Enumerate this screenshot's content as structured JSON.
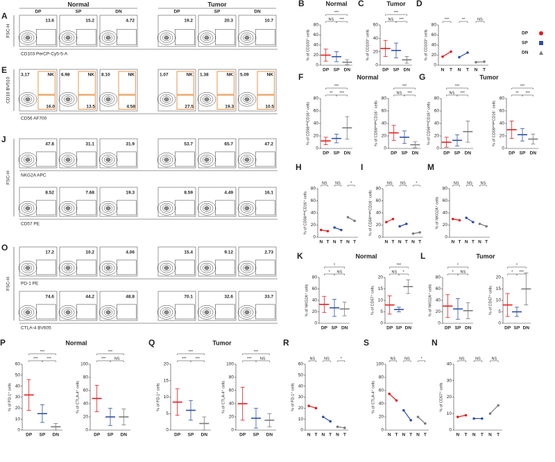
{
  "flow": {
    "headers": [
      "Normal",
      "Tumor"
    ],
    "subgroups": [
      "DP",
      "SP",
      "DN"
    ],
    "groups": [
      {
        "panel": "A",
        "ylabel": "FSC-H",
        "rows": [
          {
            "xlabel": "CD103  PerCP-Cy5-5-A",
            "gates": [
              "13.6",
              "15.2",
              "4.72",
              "19.2",
              "20.3",
              "10.7"
            ]
          }
        ]
      },
      {
        "panel": "E",
        "ylabel": "CD16  BV510",
        "rows": [
          {
            "xlabel": "CD56  AF700",
            "gate_label": "NK",
            "gates": [
              [
                "3.17",
                "16.0"
              ],
              [
                "6.98",
                "13.5"
              ],
              [
                "8.10",
                "4.58"
              ],
              [
                "1.07",
                "27.5"
              ],
              [
                "1.38",
                "19.3"
              ],
              [
                "5.09",
                "10.5"
              ]
            ]
          }
        ]
      },
      {
        "panel": "J",
        "ylabel": "FSC-H",
        "rows": [
          {
            "xlabel": "NKG2A  APC",
            "gates": [
              "47.8",
              "31.1",
              "31.9",
              "53.7",
              "65.7",
              "47.2"
            ]
          },
          {
            "xlabel": "CD57  PE",
            "gates": [
              "8.52",
              "7.68",
              "19.3",
              "8.59",
              "4.49",
              "16.1"
            ]
          }
        ]
      },
      {
        "panel": "O",
        "ylabel": "FSC-H",
        "rows": [
          {
            "xlabel": "PD-1  PE",
            "gates": [
              "17.2",
              "10.2",
              "4.06",
              "15.4",
              "9.12",
              "2.73"
            ]
          },
          {
            "xlabel": "CTLA-4  BV605",
            "gates": [
              "74.6",
              "44.2",
              "48.8",
              "70.1",
              "32.6",
              "33.7"
            ]
          }
        ]
      }
    ]
  },
  "legend": [
    {
      "name": "DP",
      "color": "#e41a1c",
      "marker": "circle"
    },
    {
      "name": "SP",
      "color": "#2b4ea6",
      "marker": "square"
    },
    {
      "name": "DN",
      "color": "#7a7a7a",
      "marker": "triangle"
    }
  ],
  "chart_data": [
    {
      "type": "dotplot",
      "panel": "B",
      "title": "Normal",
      "ylabel": "% of CD103⁺ cells",
      "categories": [
        "DP",
        "SP",
        "DN"
      ],
      "values": [
        20,
        17,
        6
      ],
      "errors": [
        12,
        10,
        5
      ],
      "ylim": [
        0,
        80
      ],
      "yticks": [
        0,
        20,
        40,
        60,
        80
      ],
      "significance": [
        "NS",
        "***",
        "***"
      ]
    },
    {
      "type": "dotplot",
      "panel": "C",
      "title": "Tumor",
      "ylabel": "% of CD103⁺ cells",
      "categories": [
        "DP",
        "SP",
        "DN"
      ],
      "values": [
        25,
        22,
        8
      ],
      "errors": [
        12,
        11,
        5
      ],
      "ylim": [
        0,
        60
      ],
      "yticks": [
        0,
        20,
        40,
        60
      ],
      "significance": [
        "NS",
        "***",
        "***"
      ]
    },
    {
      "type": "paired",
      "panel": "D",
      "ylabel": "% of CD103⁺ cells",
      "categories": [
        "N",
        "T",
        "N",
        "T",
        "N",
        "T"
      ],
      "values": [
        17,
        27,
        16,
        25,
        6,
        7
      ],
      "ylim": [
        0,
        80
      ],
      "yticks": [
        0,
        20,
        40,
        60,
        80
      ],
      "significance": [
        "***",
        "**",
        "NS"
      ]
    },
    {
      "type": "dotplot",
      "panel": "F",
      "title": "Normal",
      "ylabel": "% of CD56ᵈⁱᵐCD16⁺ cells",
      "categories": [
        "DP",
        "SP",
        "DN"
      ],
      "values": [
        12,
        16,
        33
      ],
      "errors": [
        6,
        7,
        18
      ],
      "ylim": [
        0,
        80
      ],
      "yticks": [
        0,
        20,
        40,
        60,
        80
      ],
      "significance": [
        "**",
        "***",
        "***"
      ]
    },
    {
      "type": "dotplot",
      "ylabel": "% of CD56ᵇʳⁱᵍʰᵗCD16⁻ cells",
      "categories": [
        "DP",
        "SP",
        "DN"
      ],
      "values": [
        25,
        18,
        6
      ],
      "errors": [
        12,
        10,
        5
      ],
      "ylim": [
        0,
        80
      ],
      "yticks": [
        0,
        20,
        40,
        60,
        80
      ],
      "significance": [
        "NS",
        "***",
        "***"
      ]
    },
    {
      "type": "dotplot",
      "panel": "G",
      "title": "Tumor",
      "ylabel": "% of CD56ᵈⁱᵐCD16⁺ cells",
      "categories": [
        "DP",
        "SP",
        "DN"
      ],
      "values": [
        10,
        13,
        27
      ],
      "errors": [
        8,
        9,
        17
      ],
      "ylim": [
        0,
        80
      ],
      "yticks": [
        0,
        20,
        40,
        60,
        80
      ],
      "significance": [
        "NS",
        "***",
        "***"
      ]
    },
    {
      "type": "dotplot",
      "ylabel": "% of CD56ᵇʳⁱᵍʰᵗCD16⁻ cells",
      "categories": [
        "DP",
        "SP",
        "DN"
      ],
      "values": [
        30,
        22,
        15
      ],
      "errors": [
        14,
        10,
        8
      ],
      "ylim": [
        0,
        80
      ],
      "yticks": [
        0,
        20,
        40,
        60,
        80
      ],
      "significance": [
        "**",
        "***",
        "***"
      ]
    },
    {
      "type": "paired",
      "panel": "H",
      "ylabel": "% of CD56ᵈⁱᵐCD16⁺ cells",
      "categories": [
        "N",
        "T",
        "N",
        "T",
        "N",
        "T"
      ],
      "values": [
        12,
        10,
        16,
        12,
        33,
        27
      ],
      "ylim": [
        0,
        80
      ],
      "yticks": [
        0,
        20,
        40,
        60,
        80
      ],
      "significance": [
        "NS",
        "NS",
        "*"
      ]
    },
    {
      "type": "paired",
      "panel": "I",
      "ylabel": "% of CD56ᵇʳⁱᵍʰᵗCD16⁻ cells",
      "categories": [
        "N",
        "T",
        "N",
        "T",
        "N",
        "T"
      ],
      "values": [
        25,
        30,
        18,
        22,
        6,
        8
      ],
      "ylim": [
        0,
        80
      ],
      "yticks": [
        0,
        20,
        40,
        60,
        80
      ],
      "significance": [
        "NS",
        "NS",
        "*"
      ]
    },
    {
      "type": "paired",
      "panel": "M",
      "ylabel": "% of NKG2A⁺ cells",
      "categories": [
        "N",
        "T",
        "N",
        "T",
        "N",
        "T"
      ],
      "values": [
        30,
        28,
        32,
        25,
        22,
        18
      ],
      "ylim": [
        0,
        80
      ],
      "yticks": [
        0,
        20,
        40,
        60,
        80
      ],
      "significance": [
        "NS",
        "NS",
        "NS"
      ]
    },
    {
      "type": "dotplot",
      "panel": "K",
      "title": "Normal",
      "ylabel": "% of NKG2A⁺ cells",
      "categories": [
        "DP",
        "SP",
        "DN"
      ],
      "values": [
        33,
        27,
        25
      ],
      "errors": [
        14,
        15,
        12
      ],
      "ylim": [
        0,
        80
      ],
      "yticks": [
        0,
        20,
        40,
        60,
        80
      ],
      "significance": [
        "*",
        "NS",
        "*"
      ]
    },
    {
      "type": "dotplot",
      "ylabel": "% of CD57⁺ cells",
      "categories": [
        "DP",
        "SP",
        "DN"
      ],
      "values": [
        8,
        6,
        16
      ],
      "errors": [
        4,
        1,
        3
      ],
      "ylim": [
        0,
        20
      ],
      "yticks": [
        0,
        5,
        10,
        15,
        20
      ],
      "significance": [
        "NS",
        "*",
        "***"
      ]
    },
    {
      "type": "dotplot",
      "panel": "L",
      "title": "Tumor",
      "ylabel": "% of NKG2A⁺ cells",
      "categories": [
        "DP",
        "SP",
        "DN"
      ],
      "values": [
        30,
        25,
        22
      ],
      "errors": [
        20,
        18,
        14
      ],
      "ylim": [
        0,
        80
      ],
      "yticks": [
        0,
        20,
        40,
        60,
        80
      ],
      "significance": [
        "*",
        "NS",
        "*"
      ]
    },
    {
      "type": "dotplot",
      "ylabel": "% of CD57⁺ cells",
      "categories": [
        "DP",
        "SP",
        "DN"
      ],
      "values": [
        8,
        5,
        15
      ],
      "errors": [
        5,
        2,
        7
      ],
      "ylim": [
        0,
        20
      ],
      "yticks": [
        0,
        5,
        10,
        15,
        20
      ],
      "significance": [
        "*",
        "***",
        "*"
      ]
    },
    {
      "type": "dotplot",
      "panel": "P",
      "title": "Normal",
      "ylabel": "% of PD-1⁺ cells",
      "categories": [
        "DP",
        "SP",
        "DN"
      ],
      "values": [
        32,
        15,
        3
      ],
      "errors": [
        14,
        8,
        3
      ],
      "ylim": [
        0,
        60
      ],
      "yticks": [
        0,
        10,
        20,
        30,
        40,
        50,
        60
      ],
      "significance": [
        "***",
        "***",
        "***"
      ]
    },
    {
      "type": "dotplot",
      "ylabel": "% of CTLA-4⁺ cells",
      "categories": [
        "DP",
        "SP",
        "DN"
      ],
      "values": [
        48,
        20,
        20
      ],
      "errors": [
        20,
        13,
        12
      ],
      "ylim": [
        0,
        100
      ],
      "yticks": [
        0,
        20,
        40,
        60,
        80,
        100
      ],
      "significance": [
        "***",
        "NS",
        "***"
      ]
    },
    {
      "type": "dotplot",
      "panel": "Q",
      "title": "Tumor",
      "ylabel": "% of PD-1⁺ cells",
      "categories": [
        "DP",
        "SP",
        "DN"
      ],
      "values": [
        8.5,
        6,
        2
      ],
      "errors": [
        4,
        3,
        2
      ],
      "ylim": [
        0,
        20
      ],
      "yticks": [
        0,
        5,
        10,
        15,
        20
      ],
      "significance": [
        "***",
        "***",
        "***"
      ]
    },
    {
      "type": "dotplot",
      "ylabel": "% of CTLA-4⁺ cells",
      "categories": [
        "DP",
        "SP",
        "DN"
      ],
      "values": [
        40,
        18,
        15
      ],
      "errors": [
        25,
        15,
        10
      ],
      "ylim": [
        0,
        100
      ],
      "yticks": [
        0,
        20,
        40,
        60,
        80,
        100
      ],
      "significance": [
        "***",
        "NS",
        "***"
      ]
    },
    {
      "type": "paired",
      "panel": "R",
      "ylabel": "% of PD-1⁺ cells",
      "categories": [
        "N",
        "T",
        "N",
        "T",
        "N",
        "T"
      ],
      "values": [
        22,
        20,
        12,
        8,
        3,
        2
      ],
      "ylim": [
        0,
        60
      ],
      "yticks": [
        0,
        10,
        20,
        30,
        40,
        50,
        60
      ],
      "significance": [
        "NS",
        "NS",
        "*"
      ]
    },
    {
      "type": "paired",
      "panel": "S",
      "ylabel": "% of CTLA-4⁺ cells",
      "categories": [
        "N",
        "T",
        "N",
        "T",
        "N",
        "T"
      ],
      "values": [
        55,
        45,
        30,
        15,
        20,
        10
      ],
      "ylim": [
        0,
        100
      ],
      "yticks": [
        0,
        20,
        40,
        60,
        80,
        100
      ],
      "significance": [
        "NS",
        "NS",
        "*"
      ]
    },
    {
      "type": "paired",
      "panel": "N",
      "ylabel": "% of CD57⁺ cells",
      "categories": [
        "N",
        "T",
        "N",
        "T",
        "N",
        "T"
      ],
      "values": [
        8,
        9,
        7,
        7,
        10,
        15
      ],
      "ylim": [
        0,
        40
      ],
      "yticks": [
        0,
        10,
        20,
        30,
        40
      ],
      "significance": [
        "NS",
        "NS",
        "NS"
      ]
    }
  ]
}
